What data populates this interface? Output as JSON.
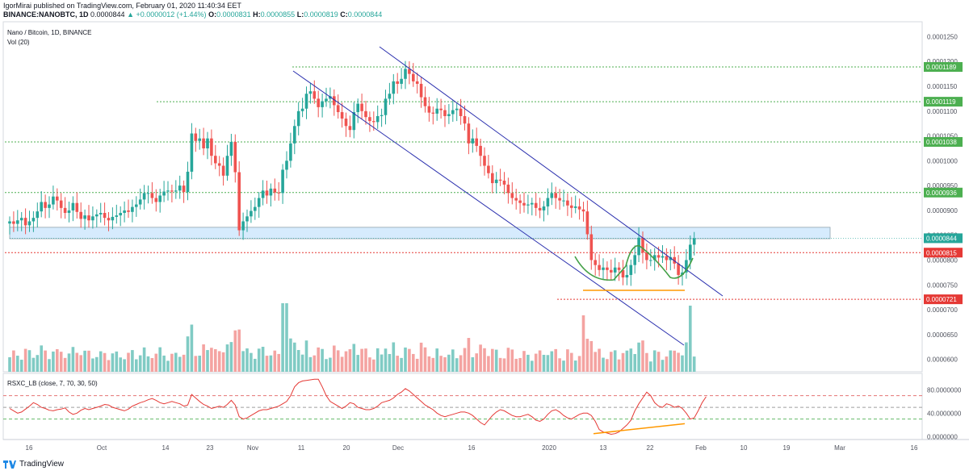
{
  "header": {
    "line1": "IgorMirai published on TradingView.com, February 01, 2020 11:40:34 EET",
    "symbol": "BINANCE:NANOBTC, 1D",
    "last": "0.0000844",
    "change": "▲ +0.0000012 (+1.44%)",
    "o_label": "O:",
    "o": "0.0000831",
    "h_label": "H:",
    "h": "0.0000855",
    "l_label": "L:",
    "l": "0.0000819",
    "c_label": "C:",
    "c": "0.0000844"
  },
  "footer": {
    "brand": "TradingView"
  },
  "chart_data": [
    {
      "type": "candlestick",
      "title": "Nano / Bitcoin, 1D, BINANCE",
      "subtitle": "Vol (20)",
      "ylim": [
        5.75e-05,
        0.000128
      ],
      "y_ticks": [
        "0.0001250",
        "0.0001200",
        "0.0001150",
        "0.0001100",
        "0.0001050",
        "0.0001000",
        "0.0000950",
        "0.0000900",
        "0.0000850",
        "0.0000800",
        "0.0000750",
        "0.0000700",
        "0.0000650",
        "0.0000600"
      ],
      "x_ticks": [
        "16",
        "Oct",
        "14",
        "23",
        "Nov",
        "11",
        "20",
        "Dec",
        "16",
        "2020",
        "13",
        "22",
        "Feb",
        "10",
        "19",
        "Mar",
        "16"
      ],
      "closes": [
        8.78e-05,
        8.73e-05,
        8.8e-05,
        8.85e-05,
        8.7e-05,
        8.78e-05,
        8.85e-05,
        8.98e-05,
        9.17e-05,
        9.05e-05,
        9.12e-05,
        9.28e-05,
        9.2e-05,
        9.05e-05,
        8.95e-05,
        9e-05,
        9.15e-05,
        8.97e-05,
        8.83e-05,
        8.9e-05,
        8.8e-05,
        8.88e-05,
        8.92e-05,
        8.95e-05,
        8.85e-05,
        8.8e-05,
        8.87e-05,
        8.9e-05,
        8.95e-05,
        9e-05,
        8.97e-05,
        9.07e-05,
        9.12e-05,
        9.22e-05,
        9.35e-05,
        9.35e-05,
        9.25e-05,
        9.17e-05,
        9.3e-05,
        9.38e-05,
        9.4e-05,
        9.38e-05,
        9.4e-05,
        9.5e-05,
        9.37e-05,
        9.78e-05,
        0.0001055,
        0.000104,
        0.0001045,
        0.0001025,
        0.0001045,
        0.000101,
        9.95e-05,
        9.9e-05,
        9.7e-05,
        0.000101,
        0.0001038,
        9.77e-05,
        8.6e-05,
        8.78e-05,
        8.88e-05,
        8.99e-05,
        9.07e-05,
        9.25e-05,
        9.4e-05,
        9.3e-05,
        9.44e-05,
        9.36e-05,
        9.35e-05,
        9.82e-05,
        0.0001,
        0.0001035,
        0.000107,
        0.00011,
        0.0001105,
        0.0001135,
        0.000114,
        0.0001125,
        0.0001108,
        0.000112,
        0.0001125,
        0.000113,
        0.0001112,
        0.0001098,
        0.0001085,
        0.000107,
        0.0001062,
        0.0001098,
        0.0001115,
        0.00011,
        0.0001088,
        0.000108,
        0.0001078,
        0.000109,
        0.0001092,
        0.0001125,
        0.0001135,
        0.000116,
        0.0001155,
        0.0001165,
        0.0001185,
        0.0001175,
        0.000116,
        0.0001155,
        0.0001128,
        0.000111,
        0.0001097,
        0.0001095,
        0.0001105,
        0.0001102,
        0.000109,
        0.0001094,
        0.0001102,
        0.0001105,
        0.000109,
        0.0001075,
        0.0001035,
        0.0001045,
        0.000103,
        0.000101,
        9.9e-05,
        9.75e-05,
        9.55e-05,
        9.62e-05,
        9.6e-05,
        9.52e-05,
        9.35e-05,
        9.25e-05,
        9.2e-05,
        9.15e-05,
        9.1e-05,
        9.12e-05,
        9.15e-05,
        9.05e-05,
        9e-05,
        9.08e-05,
        9.25e-05,
        9.35e-05,
        9.25e-05,
        9.2e-05,
        9.2e-05,
        9.1e-05,
        9.05e-05,
        9.08e-05,
        9.02e-05,
        8.98e-05,
        8.52e-05,
        8e-05,
        7.9e-05,
        7.8e-05,
        7.85e-05,
        7.8e-05,
        7.75e-05,
        7.85e-05,
        7.8e-05,
        7.65e-05,
        7.7e-05,
        7.9e-05,
        8.1e-05,
        8.45e-05,
        8.15e-05,
        8e-05,
        8e-05,
        8.1e-05,
        8.05e-05,
        8.08e-05,
        8e-05,
        8.06e-05,
        7.93e-05,
        7.7e-05,
        7.75e-05,
        8e-05,
        8.31e-05,
        8.44e-05
      ],
      "levels": [
        {
          "value": "0.0001189",
          "color": "#4caf50"
        },
        {
          "value": "0.0001119",
          "color": "#4caf50"
        },
        {
          "value": "0.0001038",
          "color": "#4caf50"
        },
        {
          "value": "0.0000936",
          "color": "#4caf50"
        },
        {
          "value": "0.0000815",
          "color": "#e53935"
        },
        {
          "value": "0.0000721",
          "color": "#e53935"
        }
      ],
      "last_price": {
        "value": "0.0000844",
        "color": "#26a69a"
      },
      "support_zone": [
        8.43e-05,
        8.66e-05
      ],
      "up_color": "#26a69a",
      "down_color": "#ef5350",
      "channel_color": "#2a2fae",
      "pattern_color": "#43a047",
      "base_color": "#ff9800"
    },
    {
      "type": "line",
      "title": "RSXC_LB (close, 7, 70, 30, 50)",
      "ylim": [
        -5,
        108
      ],
      "y_ticks": [
        "80.0000000",
        "40.0000000",
        "0.0000000"
      ],
      "levels": [
        70,
        50,
        30
      ],
      "values": [
        48,
        44,
        40,
        42,
        47,
        52,
        58,
        55,
        50,
        48,
        45,
        44,
        46,
        47,
        49,
        42,
        38,
        40,
        45,
        48,
        46,
        48,
        50,
        52,
        55,
        54,
        50,
        48,
        46,
        44,
        47,
        52,
        55,
        58,
        60,
        63,
        65,
        62,
        58,
        56,
        58,
        60,
        58,
        56,
        52,
        54,
        72,
        66,
        60,
        55,
        52,
        48,
        50,
        52,
        50,
        55,
        62,
        54,
        34,
        30,
        32,
        36,
        40,
        44,
        46,
        46,
        48,
        50,
        52,
        56,
        60,
        70,
        85,
        92,
        95,
        96,
        97,
        98,
        98,
        85,
        70,
        60,
        56,
        52,
        48,
        52,
        58,
        56,
        50,
        48,
        46,
        46,
        48,
        52,
        58,
        60,
        62,
        66,
        72,
        76,
        82,
        78,
        72,
        66,
        60,
        54,
        50,
        46,
        40,
        36,
        34,
        36,
        38,
        40,
        42,
        42,
        40,
        36,
        30,
        24,
        20,
        28,
        36,
        42,
        46,
        44,
        40,
        36,
        34,
        34,
        36,
        38,
        34,
        28,
        26,
        30,
        38,
        44,
        46,
        42,
        36,
        32,
        30,
        34,
        38,
        40,
        40,
        36,
        26,
        12,
        8,
        6,
        4,
        5,
        8,
        14,
        20,
        28,
        44,
        56,
        66,
        76,
        70,
        58,
        52,
        50,
        56,
        54,
        50,
        52,
        48,
        40,
        30,
        32,
        44,
        58,
        68
      ],
      "trend_color": "#ff9800",
      "line_color": "#e53935"
    }
  ]
}
